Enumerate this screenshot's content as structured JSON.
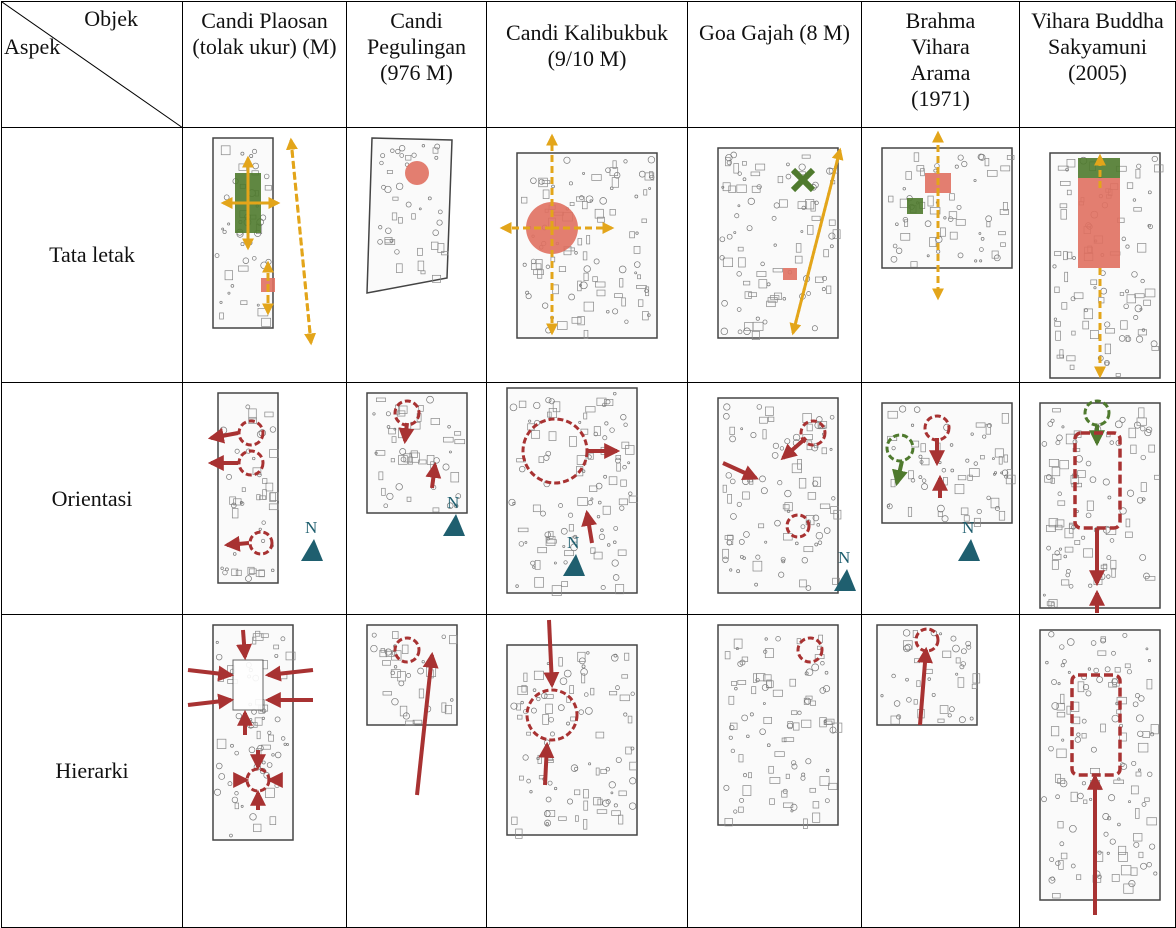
{
  "table": {
    "corner": {
      "top": "Objek",
      "bottom": "Aspek"
    },
    "columns": [
      "Candi Plaosan (tolak ukur) (M)",
      "Candi Pegulingan (976 M)",
      "Candi Kalibukbuk (9/10 M)",
      "Goa Gajah (8 M)",
      "Brahma Vihara Arama (1971)",
      "Vihara Buddha Sakyamuni (2005)"
    ],
    "rows": [
      "Tata letak",
      "Orientasi",
      "Hierarki"
    ],
    "north": "N"
  }
}
